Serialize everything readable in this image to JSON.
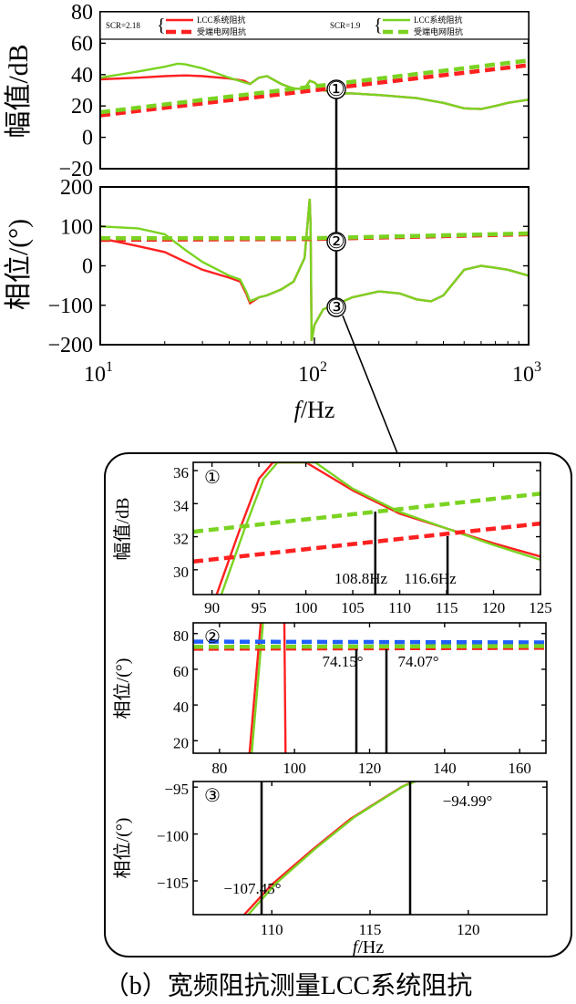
{
  "caption": "（b）宽频阻抗测量LCC系统阻抗",
  "legend": {
    "group1_label": "SCR=2.18",
    "group2_label": "SCR=1.9",
    "lcc_impedance": "LCC系统阻抗",
    "receiving_grid_impedance": "受端电网阻抗",
    "colors": {
      "scr_2_18": "#ff2020",
      "scr_1_9": "#7ad321",
      "grid_inset": "#1f5fff"
    }
  },
  "markers": {
    "m1": "①",
    "m2": "②",
    "m3": "③"
  },
  "chart_data": [
    {
      "id": "magnitude",
      "type": "line",
      "xscale": "log",
      "xlim": [
        10,
        1000
      ],
      "ylim": [
        -20,
        80
      ],
      "yticks": [
        "80",
        "60",
        "40",
        "20",
        "0",
        "−20"
      ],
      "ylabel": "幅值/dB",
      "series": [
        {
          "name": "LCC系统阻抗 SCR=2.18",
          "x": [
            10,
            15,
            20,
            25,
            30,
            40,
            47,
            50,
            55,
            60,
            70,
            80,
            90,
            95,
            100,
            110,
            130,
            150,
            200,
            300,
            400,
            500,
            600,
            700,
            800,
            1000
          ],
          "y": [
            37,
            38,
            39,
            39.5,
            39,
            37.5,
            36,
            34,
            38,
            39,
            34,
            31,
            31,
            36,
            35,
            30,
            28,
            28,
            27,
            25,
            22,
            18.5,
            18,
            20,
            22,
            24
          ]
        },
        {
          "name": "LCC系统阻抗 SCR=1.9",
          "x": [
            10,
            15,
            20,
            23,
            25,
            30,
            40,
            47,
            50,
            55,
            60,
            70,
            80,
            90,
            95,
            100,
            110,
            130,
            150,
            200,
            300,
            400,
            500,
            600,
            700,
            800,
            1000
          ],
          "y": [
            38,
            42,
            45,
            47,
            46.5,
            44,
            38,
            35,
            34,
            38,
            39,
            34,
            31,
            31,
            36,
            35,
            30,
            28,
            28,
            27,
            25,
            22,
            18.5,
            18,
            20,
            22,
            24
          ]
        },
        {
          "name": "受端电网阻抗 SCR=2.18",
          "x": [
            10,
            1000
          ],
          "y": [
            14,
            46
          ]
        },
        {
          "name": "受端电网阻抗 SCR=1.9",
          "x": [
            10,
            1000
          ],
          "y": [
            16,
            49
          ]
        }
      ]
    },
    {
      "id": "phase",
      "type": "line",
      "xscale": "log",
      "xlim": [
        10,
        1000
      ],
      "ylim": [
        -200,
        200
      ],
      "yticks": [
        "200",
        "100",
        "0",
        "−100",
        "−200"
      ],
      "xticks": [
        10,
        100,
        1000
      ],
      "xtick_base": "10",
      "xtick_exp": [
        "1",
        "2",
        "3"
      ],
      "ylabel": "相位/(°)",
      "xlabel_italic": "f",
      "xlabel_rest": "/Hz",
      "series": [
        {
          "name": "LCC系统阻抗 SCR=2.18",
          "x": [
            10,
            15,
            20,
            25,
            30,
            40,
            45,
            48,
            50,
            55,
            60,
            70,
            80,
            90,
            95,
            96,
            97,
            100,
            110,
            130,
            150,
            200,
            250,
            300,
            350,
            400,
            500,
            600,
            700,
            800,
            1000
          ],
          "y": [
            70,
            50,
            35,
            10,
            -10,
            -30,
            -40,
            -70,
            -95,
            -80,
            -75,
            -60,
            -40,
            20,
            170,
            100,
            -190,
            -150,
            -110,
            -95,
            -80,
            -65,
            -70,
            -85,
            -90,
            -75,
            -10,
            0,
            -5,
            -10,
            -25
          ]
        },
        {
          "name": "LCC系统阻抗 SCR=1.9",
          "x": [
            10,
            15,
            20,
            25,
            30,
            40,
            45,
            48,
            50,
            55,
            60,
            70,
            80,
            90,
            95,
            96,
            97,
            100,
            110,
            130,
            150,
            200,
            250,
            300,
            350,
            400,
            500,
            600,
            700,
            800,
            1000
          ],
          "y": [
            100,
            95,
            80,
            40,
            10,
            -25,
            -35,
            -65,
            -90,
            -80,
            -75,
            -60,
            -40,
            20,
            170,
            100,
            -190,
            -150,
            -110,
            -95,
            -80,
            -65,
            -70,
            -85,
            -90,
            -75,
            -10,
            0,
            -5,
            -10,
            -25
          ]
        },
        {
          "name": "受端电网阻抗 SCR=2.18",
          "x": [
            10,
            100,
            1000
          ],
          "y": [
            66,
            68,
            80
          ]
        },
        {
          "name": "受端电网阻抗 SCR=1.9",
          "x": [
            10,
            100,
            1000
          ],
          "y": [
            70,
            70,
            82
          ]
        }
      ]
    },
    {
      "id": "zoom-magnitude",
      "type": "line",
      "xlim": [
        88,
        125
      ],
      "ylim": [
        28.5,
        36.5
      ],
      "xticks": [
        "90",
        "95",
        "100",
        "105",
        "110",
        "115",
        "120",
        "125"
      ],
      "yticks": [
        "36",
        "34",
        "32",
        "30"
      ],
      "ylabel": "幅值/dB",
      "annotations": [
        {
          "x": 108.8,
          "text": "108.8Hz"
        },
        {
          "x": 116.6,
          "text": "116.6Hz"
        }
      ],
      "series": [
        {
          "name": "LCC系统阻抗 SCR=2.18",
          "x": [
            90.5,
            93,
            95,
            96.5,
            100,
            105,
            110,
            115,
            120,
            125
          ],
          "y": [
            28.5,
            32.5,
            35.5,
            36.5,
            36.5,
            34.8,
            33.4,
            32.5,
            31.6,
            30.8
          ]
        },
        {
          "name": "LCC系统阻抗 SCR=1.9",
          "x": [
            91,
            93.5,
            95.5,
            97,
            101,
            105,
            110,
            115,
            120,
            125
          ],
          "y": [
            28.5,
            32.5,
            35.5,
            36.5,
            36.5,
            34.9,
            33.5,
            32.5,
            31.5,
            30.6
          ]
        },
        {
          "name": "受端电网阻抗 SCR=2.18",
          "x": [
            88,
            125
          ],
          "y": [
            30.5,
            32.8
          ]
        },
        {
          "name": "受端电网阻抗 SCR=1.9",
          "x": [
            88,
            125
          ],
          "y": [
            32.3,
            34.6
          ]
        }
      ]
    },
    {
      "id": "zoom-phase-2",
      "type": "line",
      "xlim": [
        73,
        167
      ],
      "ylim": [
        13,
        86
      ],
      "xticks": [
        "80",
        "100",
        "120",
        "140",
        "160"
      ],
      "yticks": [
        "80",
        "60",
        "40",
        "20"
      ],
      "ylabel": "相位/(°)",
      "annotations": [
        {
          "x": 108.8,
          "text": "74.15°"
        },
        {
          "x": 116.6,
          "text": "74.07°"
        }
      ],
      "series": [
        {
          "name": "LCC系统阻抗 SCR=2.18 (rise)",
          "x": [
            88,
            91
          ],
          "y": [
            13,
            86
          ]
        },
        {
          "name": "LCC系统阻抗 SCR=1.9 (rise)",
          "x": [
            88.6,
            91.6
          ],
          "y": [
            13,
            86
          ]
        },
        {
          "name": "LCC系统阻抗 SCR=2.18 (drop)",
          "x": [
            97.3,
            97.6
          ],
          "y": [
            86,
            13
          ]
        },
        {
          "name": "受端电网阻抗 (blue)",
          "x": [
            73,
            167
          ],
          "y": [
            75.5,
            75
          ]
        },
        {
          "name": "受端电网阻抗 SCR=2.18",
          "x": [
            73,
            167
          ],
          "y": [
            71.5,
            72
          ]
        },
        {
          "name": "受端电网阻抗 SCR=1.9",
          "x": [
            73,
            167
          ],
          "y": [
            72.5,
            73
          ]
        }
      ]
    },
    {
      "id": "zoom-phase-3",
      "type": "line",
      "xlim": [
        106,
        124
      ],
      "ylim": [
        -108.6,
        -94.4
      ],
      "xticks": [
        "110",
        "115",
        "120"
      ],
      "yticks": [
        "−95",
        "−100",
        "−105"
      ],
      "ylabel": "相位/(°)",
      "xlabel_italic": "f",
      "xlabel_rest": "/Hz",
      "annotations": [
        {
          "x": 108.8,
          "text": "−107.45°"
        },
        {
          "x": 116.6,
          "text": "−94.99°"
        }
      ],
      "series": [
        {
          "name": "LCC系统阻抗 SCR=2.18",
          "x": [
            108.6,
            110,
            112,
            114,
            116.6,
            117.2
          ],
          "y": [
            -108.6,
            -105.4,
            -101.8,
            -98.4,
            -94.99,
            -94.4
          ]
        },
        {
          "name": "LCC系统阻抗 SCR=1.9",
          "x": [
            108.8,
            110.2,
            112.2,
            114.2,
            116.7,
            117.3
          ],
          "y": [
            -108.6,
            -105.3,
            -101.6,
            -98.2,
            -94.9,
            -94.4
          ]
        }
      ]
    }
  ]
}
